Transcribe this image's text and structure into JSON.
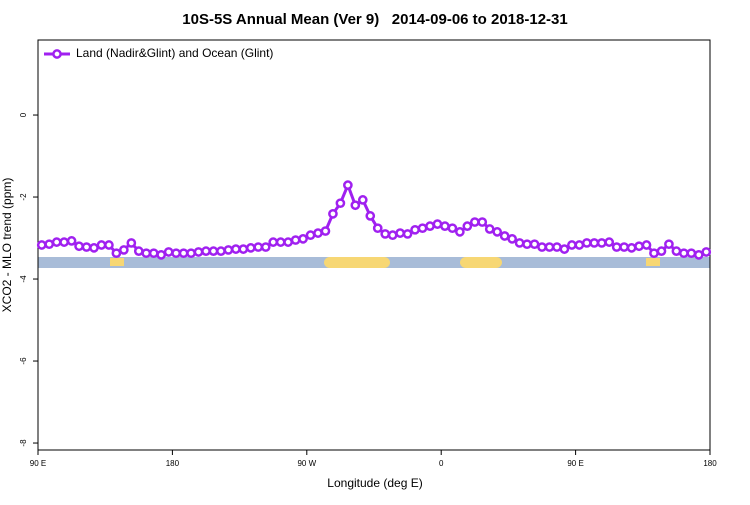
{
  "chart_data": {
    "type": "line",
    "title": "10S-5S Annual Mean (Ver 9)   2014-09-06 to 2018-12-31",
    "xlabel": "Longitude (deg E)",
    "ylabel": "XCO2 - MLO trend (ppm)",
    "xlim": [
      90,
      540
    ],
    "ylim": [
      -8.17,
      1.83
    ],
    "xticks": [
      {
        "value": 90,
        "label": "90 E"
      },
      180,
      {
        "value": 270,
        "label": "90 W"
      },
      {
        "value": 360,
        "label": "0"
      },
      {
        "value": 450,
        "label": "90 E"
      },
      {
        "value": 540,
        "label": "180"
      }
    ],
    "yticks": [
      0,
      -2,
      -4,
      -6,
      -8
    ],
    "legend": "top-left",
    "x": [
      92.5,
      97.5,
      102.5,
      107.5,
      112.5,
      117.5,
      122.5,
      127.5,
      132.5,
      137.5,
      142.5,
      147.5,
      152.5,
      157.5,
      162.5,
      167.5,
      172.5,
      177.5,
      182.5,
      187.5,
      192.5,
      197.5,
      202.5,
      207.5,
      212.5,
      217.5,
      222.5,
      227.5,
      232.5,
      237.5,
      242.5,
      247.5,
      252.5,
      257.5,
      262.5,
      267.5,
      272.5,
      277.5,
      282.5,
      287.5,
      292.5,
      297.5,
      302.5,
      307.5,
      312.5,
      317.5,
      322.5,
      327.5,
      332.5,
      337.5,
      342.5,
      347.5,
      352.5,
      357.5,
      362.5,
      367.5,
      372.5,
      377.5,
      382.5,
      387.5,
      392.5,
      397.5,
      402.5,
      407.5,
      412.5,
      417.5,
      422.5,
      427.5,
      432.5,
      437.5,
      442.5,
      447.5,
      452.5,
      457.5,
      462.5,
      467.5,
      472.5,
      477.5,
      482.5,
      487.5,
      492.5,
      497.5,
      502.5,
      507.5,
      512.5,
      517.5,
      522.5,
      527.5,
      532.5,
      537.5
    ],
    "series": [
      {
        "name": "Land (Nadir&Glint) and Ocean (Glint)",
        "color": "#a020f0",
        "values": [
          -3.17,
          -3.15,
          -3.1,
          -3.1,
          -3.07,
          -3.2,
          -3.22,
          -3.24,
          -3.17,
          -3.17,
          -3.37,
          -3.29,
          -3.12,
          -3.32,
          -3.37,
          -3.37,
          -3.41,
          -3.34,
          -3.37,
          -3.37,
          -3.37,
          -3.34,
          -3.32,
          -3.32,
          -3.32,
          -3.29,
          -3.27,
          -3.27,
          -3.24,
          -3.22,
          -3.22,
          -3.1,
          -3.1,
          -3.1,
          -3.05,
          -3.02,
          -2.93,
          -2.88,
          -2.83,
          -2.41,
          -2.15,
          -1.71,
          -2.2,
          -2.07,
          -2.46,
          -2.76,
          -2.9,
          -2.93,
          -2.88,
          -2.9,
          -2.8,
          -2.76,
          -2.71,
          -2.66,
          -2.71,
          -2.76,
          -2.85,
          -2.71,
          -2.61,
          -2.61,
          -2.78,
          -2.85,
          -2.95,
          -3.02,
          -3.12,
          -3.15,
          -3.15,
          -3.22,
          -3.22,
          -3.22,
          -3.27,
          -3.17,
          -3.17,
          -3.12,
          -3.12,
          -3.12,
          -3.1,
          -3.22,
          -3.22,
          -3.24,
          -3.2,
          -3.17,
          -3.37,
          -3.32,
          -3.15,
          -3.32,
          -3.37,
          -3.37,
          -3.41,
          -3.34
        ]
      }
    ]
  }
}
